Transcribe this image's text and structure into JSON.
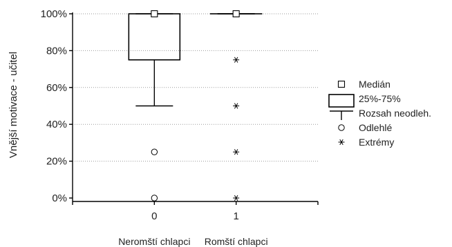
{
  "chart_data": {
    "type": "box",
    "ylabel": "Vnější motivace - učitel",
    "ylim": [
      0,
      100
    ],
    "y_ticks": [
      0,
      20,
      40,
      60,
      80,
      100
    ],
    "y_tick_labels": [
      "0%",
      "20%",
      "40%",
      "60%",
      "80%",
      "100%"
    ],
    "grid": "horizontal dotted",
    "groups": [
      {
        "x_tick": "0",
        "category": "Neromští chlapci",
        "median": 100,
        "q1": 75,
        "q3": 100,
        "whisker_low": 50,
        "whisker_high": 100,
        "outliers": [
          25,
          0
        ],
        "extremes": []
      },
      {
        "x_tick": "1",
        "category": "Romští chlapci",
        "median": 100,
        "q1": 100,
        "q3": 100,
        "whisker_low": 100,
        "whisker_high": 100,
        "outliers": [],
        "extremes": [
          75,
          50,
          25,
          0
        ]
      }
    ],
    "legend": {
      "placement": "right",
      "entries": [
        {
          "key": "median",
          "label": "Medián"
        },
        {
          "key": "box",
          "label": "25%-75%"
        },
        {
          "key": "whisker",
          "label": "Rozsah neodleh."
        },
        {
          "key": "outlier",
          "label": "Odlehlé"
        },
        {
          "key": "extreme",
          "label": "Extrémy"
        }
      ]
    }
  }
}
